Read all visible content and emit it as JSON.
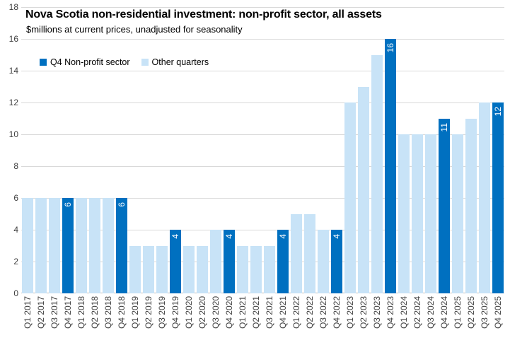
{
  "chart_data": {
    "type": "bar",
    "title": "Nova Scotia non-residential investment: non-profit sector, all assets",
    "subtitle": "$millions at current prices, unadjusted for seasonality",
    "categories": [
      "Q1 2017",
      "Q2 2017",
      "Q3 2017",
      "Q4 2017",
      "Q1 2018",
      "Q2 2018",
      "Q3 2018",
      "Q4 2018",
      "Q1 2019",
      "Q2 2019",
      "Q3 2019",
      "Q4 2019",
      "Q1 2020",
      "Q2 2020",
      "Q3 2020",
      "Q4 2020",
      "Q1 2021",
      "Q2 2021",
      "Q3 2021",
      "Q4 2021",
      "Q1 2022",
      "Q2 2022",
      "Q3 2022",
      "Q4 2022",
      "Q1 2023",
      "Q2 2023",
      "Q3 2023",
      "Q4 2023",
      "Q1 2024",
      "Q2 2024",
      "Q3 2024",
      "Q4 2024",
      "Q1 2025",
      "Q2 2025",
      "Q3 2025",
      "Q4 2025"
    ],
    "values": [
      6,
      6,
      6,
      6,
      6,
      6,
      6,
      6,
      3,
      3,
      3,
      4,
      3,
      3,
      4,
      4,
      3,
      3,
      3,
      4,
      5,
      5,
      4,
      4,
      12,
      13,
      15,
      16,
      10,
      10,
      10,
      11,
      10,
      11,
      12,
      12
    ],
    "highlight_rule": "every Q4 bar uses the dark series color and shows its value as a white rotated label inside the bar top",
    "q4_value_labels": [
      "6",
      "6",
      "4",
      "4",
      "4",
      "4",
      "16",
      "11",
      "12"
    ],
    "series": [
      {
        "name": "Q4 Non-profit sector",
        "color": "#0070C0"
      },
      {
        "name": "Other quarters",
        "color": "#C8E3F7"
      }
    ],
    "y_ticks": [
      0,
      2,
      4,
      6,
      8,
      10,
      12,
      14,
      16,
      18
    ],
    "ylim": [
      0,
      18
    ],
    "xlabel": "",
    "ylabel": "",
    "grid": true,
    "legend_position": "inside top-left",
    "colors": {
      "gridline": "#D9D9D9",
      "axis_line": "#BFBFBF",
      "bar_label_text": "#FFFFFF",
      "axis_text": "#3F3F3F",
      "title_text": "#000000",
      "background": "#FFFFFF"
    }
  }
}
